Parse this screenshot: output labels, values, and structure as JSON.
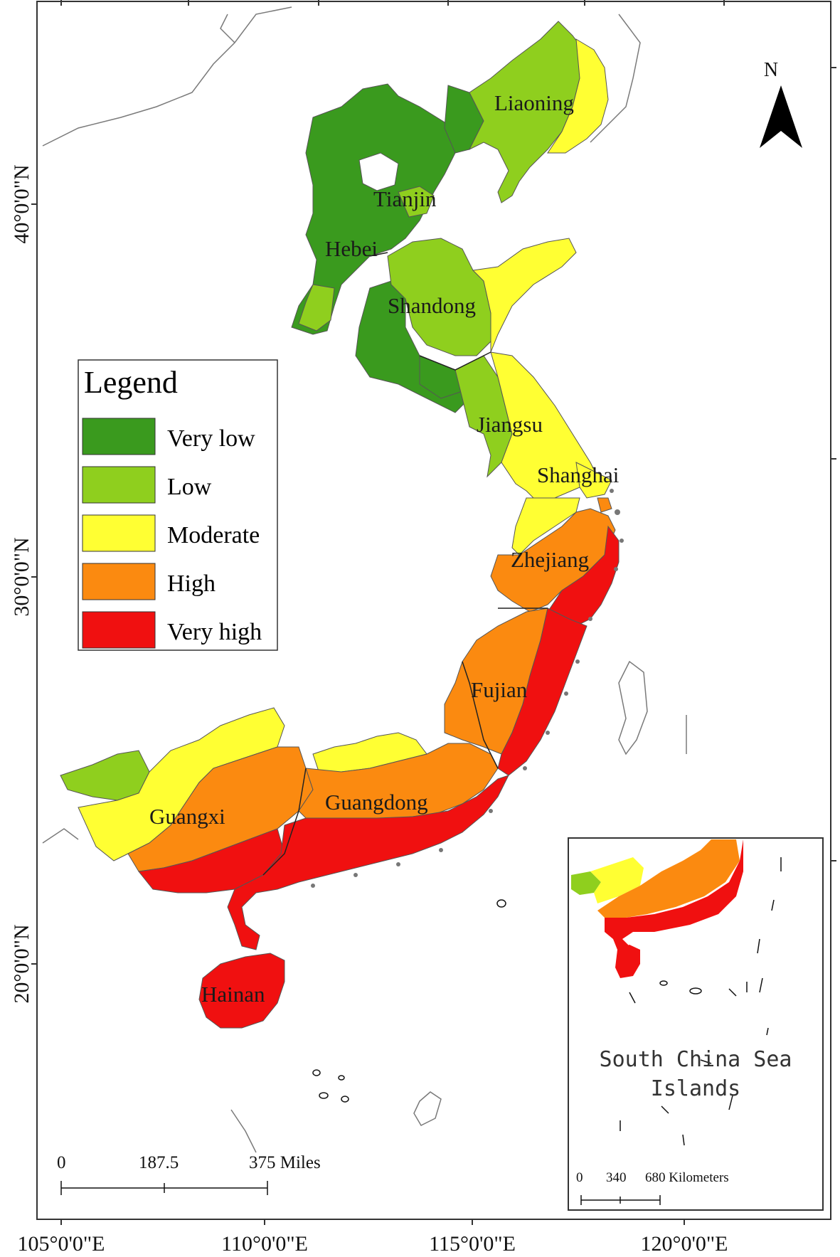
{
  "legend": {
    "title": "Legend",
    "items": [
      {
        "label": "Very low",
        "color": "#3a9a1e"
      },
      {
        "label": "Low",
        "color": "#8fcf1e"
      },
      {
        "label": "Moderate",
        "color": "#ffff33"
      },
      {
        "label": "High",
        "color": "#fb8a10"
      },
      {
        "label": "Very high",
        "color": "#f01010"
      }
    ]
  },
  "provinces": {
    "liaoning": "Liaoning",
    "tianjin": "Tianjin",
    "hebei": "Hebei",
    "shandong": "Shandong",
    "jiangsu": "Jiangsu",
    "shanghai": "Shanghai",
    "zhejiang": "Zhejiang",
    "fujian": "Fujian",
    "guangxi": "Guangxi",
    "guangdong": "Guangdong",
    "hainan": "Hainan"
  },
  "north_arrow": "N",
  "lon_labels": [
    "105°0'0\"E",
    "110°0'0\"E",
    "115°0'0\"E",
    "120°0'0\"E"
  ],
  "lat_labels": [
    "40°0'0\"N",
    "30°0'0\"N",
    "20°0'0\"N"
  ],
  "scale_bar": {
    "ticks": [
      "0",
      "187.5",
      "375 Miles"
    ]
  },
  "inset": {
    "title_line1": "South China Sea",
    "title_line2": "Islands",
    "scale_ticks": [
      "0",
      "340",
      "680 Kilometers"
    ]
  }
}
